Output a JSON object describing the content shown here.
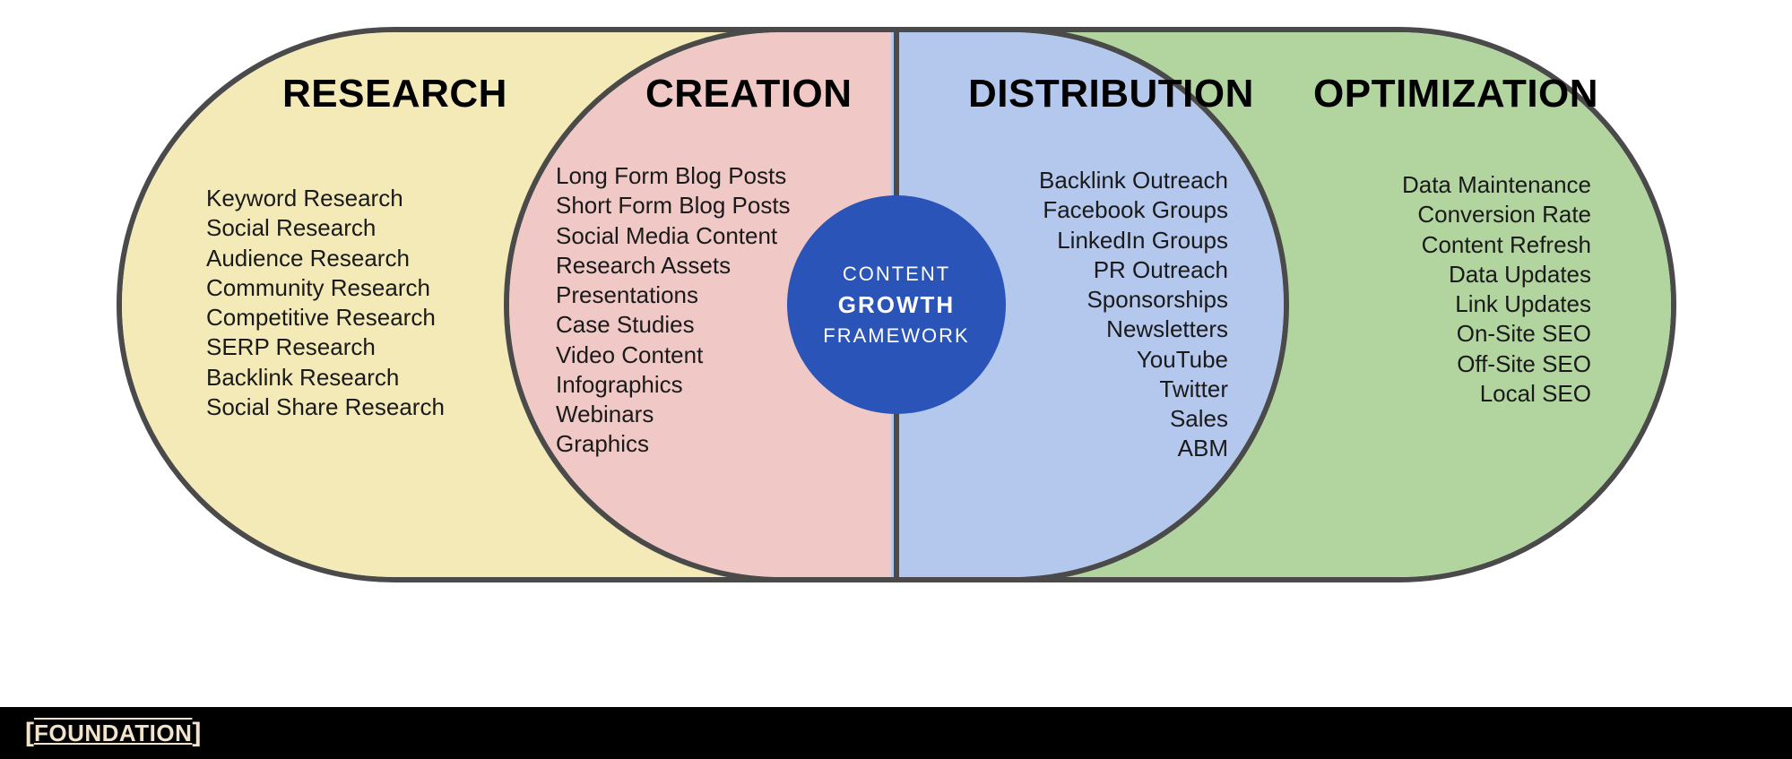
{
  "diagram": {
    "type": "infographic",
    "border_color": "#4a4a4a",
    "border_width": 6,
    "background_color": "#ffffff",
    "sections": {
      "research": {
        "title": "RESEARCH",
        "fill": "#f3eab8",
        "title_color": "#1a1a1a",
        "items": [
          "Keyword Research",
          "Social Research",
          "Audience Research",
          "Community Research",
          "Competitive Research",
          "SERP Research",
          "Backlink Research",
          "Social Share Research"
        ]
      },
      "creation": {
        "title": "CREATION",
        "fill": "#f0c9c7",
        "title_color": "#1a1a1a",
        "items": [
          "Long Form Blog Posts",
          "Short Form Blog Posts",
          "Social Media Content",
          "Research Assets",
          "Presentations",
          "Case Studies",
          "Video Content",
          "Infographics",
          "Webinars",
          "Graphics"
        ]
      },
      "distribution": {
        "title": "DISTRIBUTION",
        "fill": "#b4c7ed",
        "title_color": "#1a1a1a",
        "items": [
          "Backlink Outreach",
          "Facebook Groups",
          "LinkedIn Groups",
          "PR Outreach",
          "Sponsorships",
          "Newsletters",
          "YouTube",
          "Twitter",
          "Sales",
          "ABM"
        ]
      },
      "optimization": {
        "title": "OPTIMIZATION",
        "fill": "#b2d5a0",
        "title_color": "#1a1a1a",
        "items": [
          "Data Maintenance",
          "Conversion Rate",
          "Content Refresh",
          "Data Updates",
          "Link Updates",
          "On-Site SEO",
          "Off-Site SEO",
          "Local SEO"
        ]
      }
    },
    "center": {
      "fill": "#2a54b8",
      "text_color": "#ffffff",
      "line1": "CONTENT",
      "line2": "GROWTH",
      "line3": "FRAMEWORK"
    },
    "title_fontsize": 44,
    "item_fontsize": 26
  },
  "footer": {
    "background": "#000000",
    "logo_text": "FOUNDATION",
    "logo_color": "#f1e3cc"
  }
}
